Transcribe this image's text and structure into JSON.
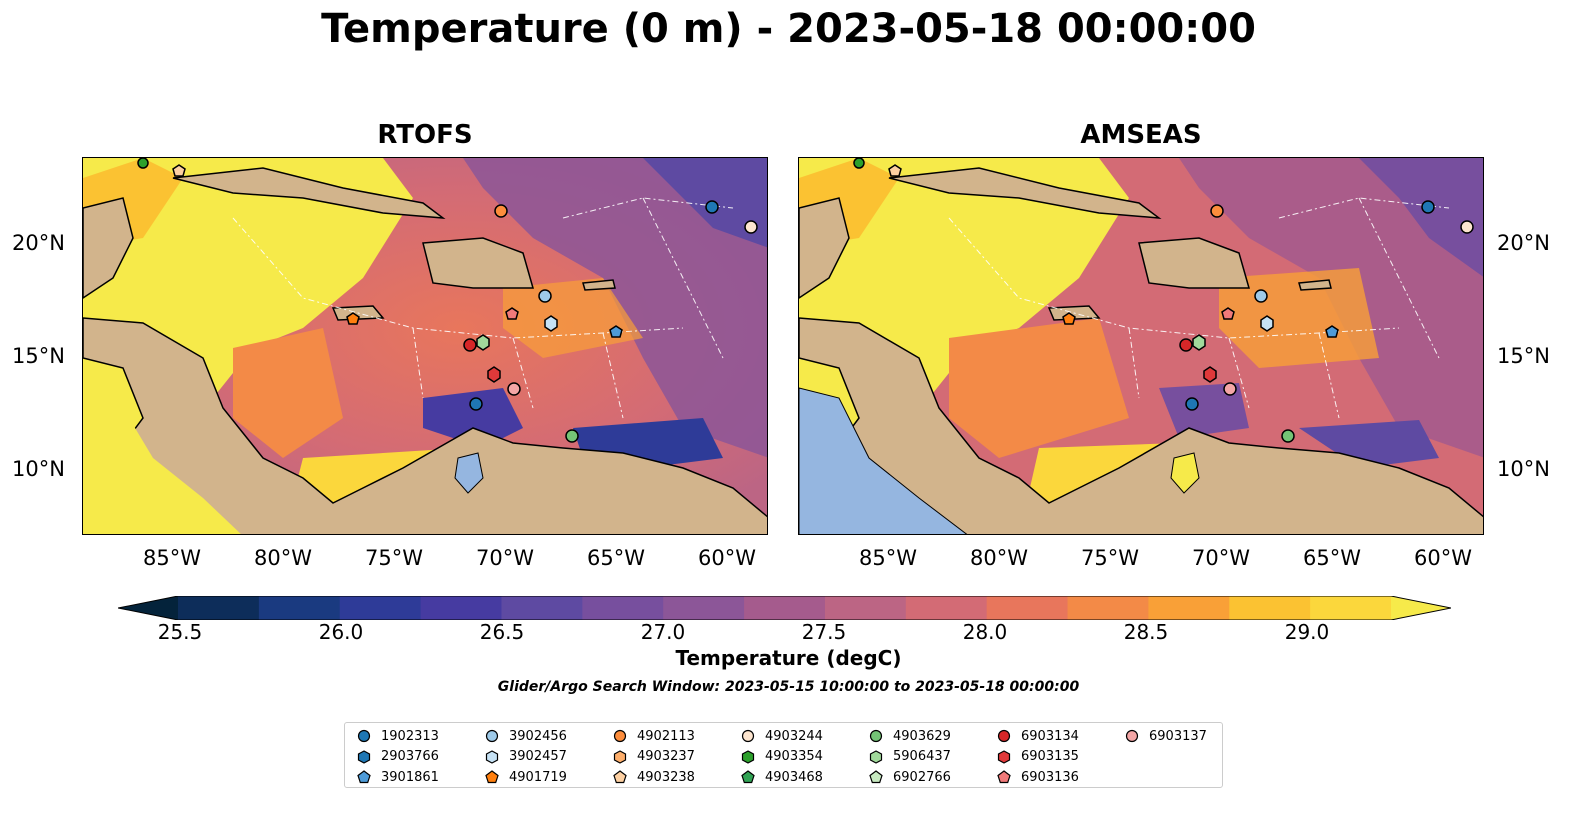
{
  "title": "Temperature (0 m) - 2023-05-18 00:00:00",
  "panels": [
    {
      "title": "RTOFS"
    },
    {
      "title": "AMSEAS"
    }
  ],
  "map": {
    "lon_ticks": [
      "85°W",
      "80°W",
      "75°W",
      "70°W",
      "65°W",
      "60°W"
    ],
    "lat_ticks": [
      "20°N",
      "15°N",
      "10°N"
    ],
    "extent_lon": [
      -89,
      -58.3
    ],
    "extent_lat": [
      7,
      24
    ],
    "land_color": "#d2b48c",
    "lake_color": "#95b6e0"
  },
  "colorbar": {
    "label": "Temperature (degC)",
    "ticks": [
      "25.5",
      "26.0",
      "26.5",
      "27.0",
      "27.5",
      "28.0",
      "28.5",
      "29.0"
    ],
    "min": 25.3,
    "max": 29.4,
    "colors": [
      "#04233b",
      "#0d2d5a",
      "#1a3a80",
      "#2e3b98",
      "#463ba1",
      "#5e4aa2",
      "#774f9e",
      "#8c5698",
      "#a55b8d",
      "#bc6584",
      "#d36b75",
      "#e8765c",
      "#f38a47",
      "#f9a037",
      "#fbc232",
      "#fbd73c",
      "#f6ea4a"
    ]
  },
  "search_window": "Glider/Argo Search Window: 2023-05-15 10:00:00 to 2023-05-18 00:00:00",
  "legend": [
    {
      "id": "1902313",
      "marker": "circle",
      "color": "#1f77b4"
    },
    {
      "id": "2903766",
      "marker": "hexagon",
      "color": "#1f77b4"
    },
    {
      "id": "3901861",
      "marker": "pentagon",
      "color": "#4e9bd8"
    },
    {
      "id": "3902456",
      "marker": "circle",
      "color": "#9ecae9"
    },
    {
      "id": "3902457",
      "marker": "hexagon",
      "color": "#c6e2f5"
    },
    {
      "id": "4901719",
      "marker": "pentagon",
      "color": "#ff7f0e"
    },
    {
      "id": "4902113",
      "marker": "circle",
      "color": "#fd8d3c"
    },
    {
      "id": "4903237",
      "marker": "hexagon",
      "color": "#fdae6b"
    },
    {
      "id": "4903238",
      "marker": "pentagon",
      "color": "#fdd0a2"
    },
    {
      "id": "4903244",
      "marker": "circle",
      "color": "#fde5cf"
    },
    {
      "id": "4903354",
      "marker": "hexagon",
      "color": "#2ca02c"
    },
    {
      "id": "4903468",
      "marker": "pentagon",
      "color": "#31a354"
    },
    {
      "id": "4903629",
      "marker": "circle",
      "color": "#74c476"
    },
    {
      "id": "5906437",
      "marker": "hexagon",
      "color": "#a1d99b"
    },
    {
      "id": "6902766",
      "marker": "pentagon",
      "color": "#c7e9c0"
    },
    {
      "id": "6903134",
      "marker": "circle",
      "color": "#d62728"
    },
    {
      "id": "6903135",
      "marker": "hexagon",
      "color": "#e0393a"
    },
    {
      "id": "6903136",
      "marker": "pentagon",
      "color": "#f07a7a"
    },
    {
      "id": "6903137",
      "marker": "circle",
      "color": "#f4a6a6"
    }
  ]
}
